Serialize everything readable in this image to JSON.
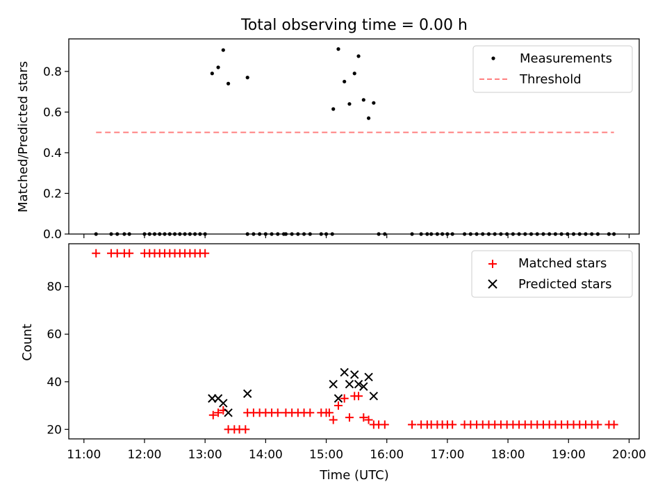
{
  "title": "Total observing time = 0.00 h",
  "colors": {
    "measurement": "#000000",
    "threshold": "#ff7f7f",
    "matched": "#ff0000",
    "predicted": "#000000"
  },
  "chart_data": [
    {
      "type": "scatter",
      "ylabel": "Matched/Predicted stars",
      "ylim": [
        0,
        0.96
      ],
      "yticks": [
        "0.0",
        "0.2",
        "0.4",
        "0.6",
        "0.8"
      ],
      "legend": {
        "placement": "top-right",
        "entries": [
          "Measurements",
          "Threshold"
        ]
      },
      "threshold": {
        "value": 0.5,
        "x_start": "11:12",
        "x_end": "19:45"
      },
      "series": [
        {
          "name": "Measurements",
          "points": [
            [
              "11:12",
              0
            ],
            [
              "11:27",
              0
            ],
            [
              "11:33",
              0
            ],
            [
              "11:40",
              0
            ],
            [
              "11:45",
              0
            ],
            [
              "12:00",
              0
            ],
            [
              "12:05",
              0
            ],
            [
              "12:10",
              0
            ],
            [
              "12:15",
              0
            ],
            [
              "12:20",
              0
            ],
            [
              "12:25",
              0
            ],
            [
              "12:30",
              0
            ],
            [
              "12:35",
              0
            ],
            [
              "12:40",
              0
            ],
            [
              "12:45",
              0
            ],
            [
              "12:50",
              0
            ],
            [
              "12:55",
              0
            ],
            [
              "13:00",
              0
            ],
            [
              "13:07",
              0.79
            ],
            [
              "13:13",
              0.82
            ],
            [
              "13:18",
              0.905
            ],
            [
              "13:23",
              0.74
            ],
            [
              "13:42",
              0
            ],
            [
              "13:48",
              0
            ],
            [
              "13:54",
              0
            ],
            [
              "13:42",
              0.77
            ],
            [
              "14:00",
              0
            ],
            [
              "14:06",
              0
            ],
            [
              "14:12",
              0
            ],
            [
              "14:18",
              0
            ],
            [
              "14:20",
              0
            ],
            [
              "14:26",
              0
            ],
            [
              "14:32",
              0
            ],
            [
              "14:38",
              0
            ],
            [
              "14:44",
              0
            ],
            [
              "14:55",
              0
            ],
            [
              "15:00",
              0
            ],
            [
              "15:06",
              0
            ],
            [
              "15:07",
              0.615
            ],
            [
              "15:12",
              0.91
            ],
            [
              "15:18",
              0.75
            ],
            [
              "15:23",
              0.64
            ],
            [
              "15:28",
              0.79
            ],
            [
              "15:32",
              0.875
            ],
            [
              "15:37",
              0.66
            ],
            [
              "15:42",
              0.57
            ],
            [
              "15:47",
              0.645
            ],
            [
              "15:52",
              0
            ],
            [
              "15:58",
              0
            ],
            [
              "16:25",
              0
            ],
            [
              "16:34",
              0
            ],
            [
              "16:40",
              0
            ],
            [
              "16:44",
              0
            ],
            [
              "16:50",
              0
            ],
            [
              "16:55",
              0
            ],
            [
              "17:00",
              0
            ],
            [
              "17:05",
              0
            ],
            [
              "17:17",
              0
            ],
            [
              "17:23",
              0
            ],
            [
              "17:29",
              0
            ],
            [
              "17:35",
              0
            ],
            [
              "17:41",
              0
            ],
            [
              "17:47",
              0
            ],
            [
              "17:53",
              0
            ],
            [
              "17:59",
              0
            ],
            [
              "18:05",
              0
            ],
            [
              "18:11",
              0
            ],
            [
              "18:17",
              0
            ],
            [
              "18:23",
              0
            ],
            [
              "18:29",
              0
            ],
            [
              "18:35",
              0
            ],
            [
              "18:41",
              0
            ],
            [
              "18:47",
              0
            ],
            [
              "18:53",
              0
            ],
            [
              "18:59",
              0
            ],
            [
              "19:05",
              0
            ],
            [
              "19:11",
              0
            ],
            [
              "19:17",
              0
            ],
            [
              "19:23",
              0
            ],
            [
              "19:29",
              0
            ],
            [
              "19:40",
              0
            ],
            [
              "19:45",
              0
            ]
          ]
        }
      ]
    },
    {
      "type": "scatter",
      "xlabel": "Time (UTC)",
      "ylabel": "Count",
      "xlim": [
        "10:45",
        "20:10"
      ],
      "ylim": [
        16,
        98
      ],
      "xticks": [
        "11:00",
        "12:00",
        "13:00",
        "14:00",
        "15:00",
        "16:00",
        "17:00",
        "18:00",
        "19:00",
        "20:00"
      ],
      "yticks": [
        "20",
        "40",
        "60",
        "80"
      ],
      "legend": {
        "placement": "top-right",
        "entries": [
          "Matched stars",
          "Predicted stars"
        ]
      },
      "series": [
        {
          "name": "Matched stars",
          "points": [
            [
              "11:12",
              94
            ],
            [
              "11:27",
              94
            ],
            [
              "11:33",
              94
            ],
            [
              "11:40",
              94
            ],
            [
              "11:45",
              94
            ],
            [
              "12:00",
              94
            ],
            [
              "12:05",
              94
            ],
            [
              "12:10",
              94
            ],
            [
              "12:15",
              94
            ],
            [
              "12:20",
              94
            ],
            [
              "12:25",
              94
            ],
            [
              "12:30",
              94
            ],
            [
              "12:35",
              94
            ],
            [
              "12:40",
              94
            ],
            [
              "12:45",
              94
            ],
            [
              "12:50",
              94
            ],
            [
              "12:55",
              94
            ],
            [
              "13:00",
              94
            ],
            [
              "13:08",
              26
            ],
            [
              "13:13",
              27
            ],
            [
              "13:18",
              28
            ],
            [
              "13:23",
              20
            ],
            [
              "13:29",
              20
            ],
            [
              "13:34",
              20
            ],
            [
              "13:40",
              20
            ],
            [
              "13:42",
              27
            ],
            [
              "13:48",
              27
            ],
            [
              "13:54",
              27
            ],
            [
              "14:00",
              27
            ],
            [
              "14:06",
              27
            ],
            [
              "14:12",
              27
            ],
            [
              "14:20",
              27
            ],
            [
              "14:26",
              27
            ],
            [
              "14:32",
              27
            ],
            [
              "14:38",
              27
            ],
            [
              "14:44",
              27
            ],
            [
              "14:55",
              27
            ],
            [
              "15:00",
              27
            ],
            [
              "15:03",
              27
            ],
            [
              "15:07",
              24
            ],
            [
              "15:12",
              30
            ],
            [
              "15:18",
              33
            ],
            [
              "15:23",
              25
            ],
            [
              "15:28",
              34
            ],
            [
              "15:32",
              34
            ],
            [
              "15:37",
              25
            ],
            [
              "15:42",
              24
            ],
            [
              "15:47",
              22
            ],
            [
              "15:52",
              22
            ],
            [
              "15:58",
              22
            ],
            [
              "16:25",
              22
            ],
            [
              "16:34",
              22
            ],
            [
              "16:40",
              22
            ],
            [
              "16:44",
              22
            ],
            [
              "16:50",
              22
            ],
            [
              "16:55",
              22
            ],
            [
              "17:00",
              22
            ],
            [
              "17:05",
              22
            ],
            [
              "17:17",
              22
            ],
            [
              "17:23",
              22
            ],
            [
              "17:29",
              22
            ],
            [
              "17:35",
              22
            ],
            [
              "17:41",
              22
            ],
            [
              "17:47",
              22
            ],
            [
              "17:53",
              22
            ],
            [
              "17:59",
              22
            ],
            [
              "18:05",
              22
            ],
            [
              "18:11",
              22
            ],
            [
              "18:17",
              22
            ],
            [
              "18:23",
              22
            ],
            [
              "18:29",
              22
            ],
            [
              "18:35",
              22
            ],
            [
              "18:41",
              22
            ],
            [
              "18:47",
              22
            ],
            [
              "18:53",
              22
            ],
            [
              "18:59",
              22
            ],
            [
              "19:05",
              22
            ],
            [
              "19:11",
              22
            ],
            [
              "19:17",
              22
            ],
            [
              "19:23",
              22
            ],
            [
              "19:29",
              22
            ],
            [
              "19:40",
              22
            ],
            [
              "19:45",
              22
            ]
          ]
        },
        {
          "name": "Predicted stars",
          "points": [
            [
              "13:07",
              33
            ],
            [
              "13:13",
              33
            ],
            [
              "13:18",
              31
            ],
            [
              "13:23",
              27
            ],
            [
              "13:42",
              35
            ],
            [
              "15:07",
              39
            ],
            [
              "15:12",
              33
            ],
            [
              "15:18",
              44
            ],
            [
              "15:23",
              39
            ],
            [
              "15:28",
              43
            ],
            [
              "15:32",
              39
            ],
            [
              "15:37",
              38
            ],
            [
              "15:42",
              42
            ],
            [
              "15:47",
              34
            ]
          ]
        }
      ]
    }
  ]
}
